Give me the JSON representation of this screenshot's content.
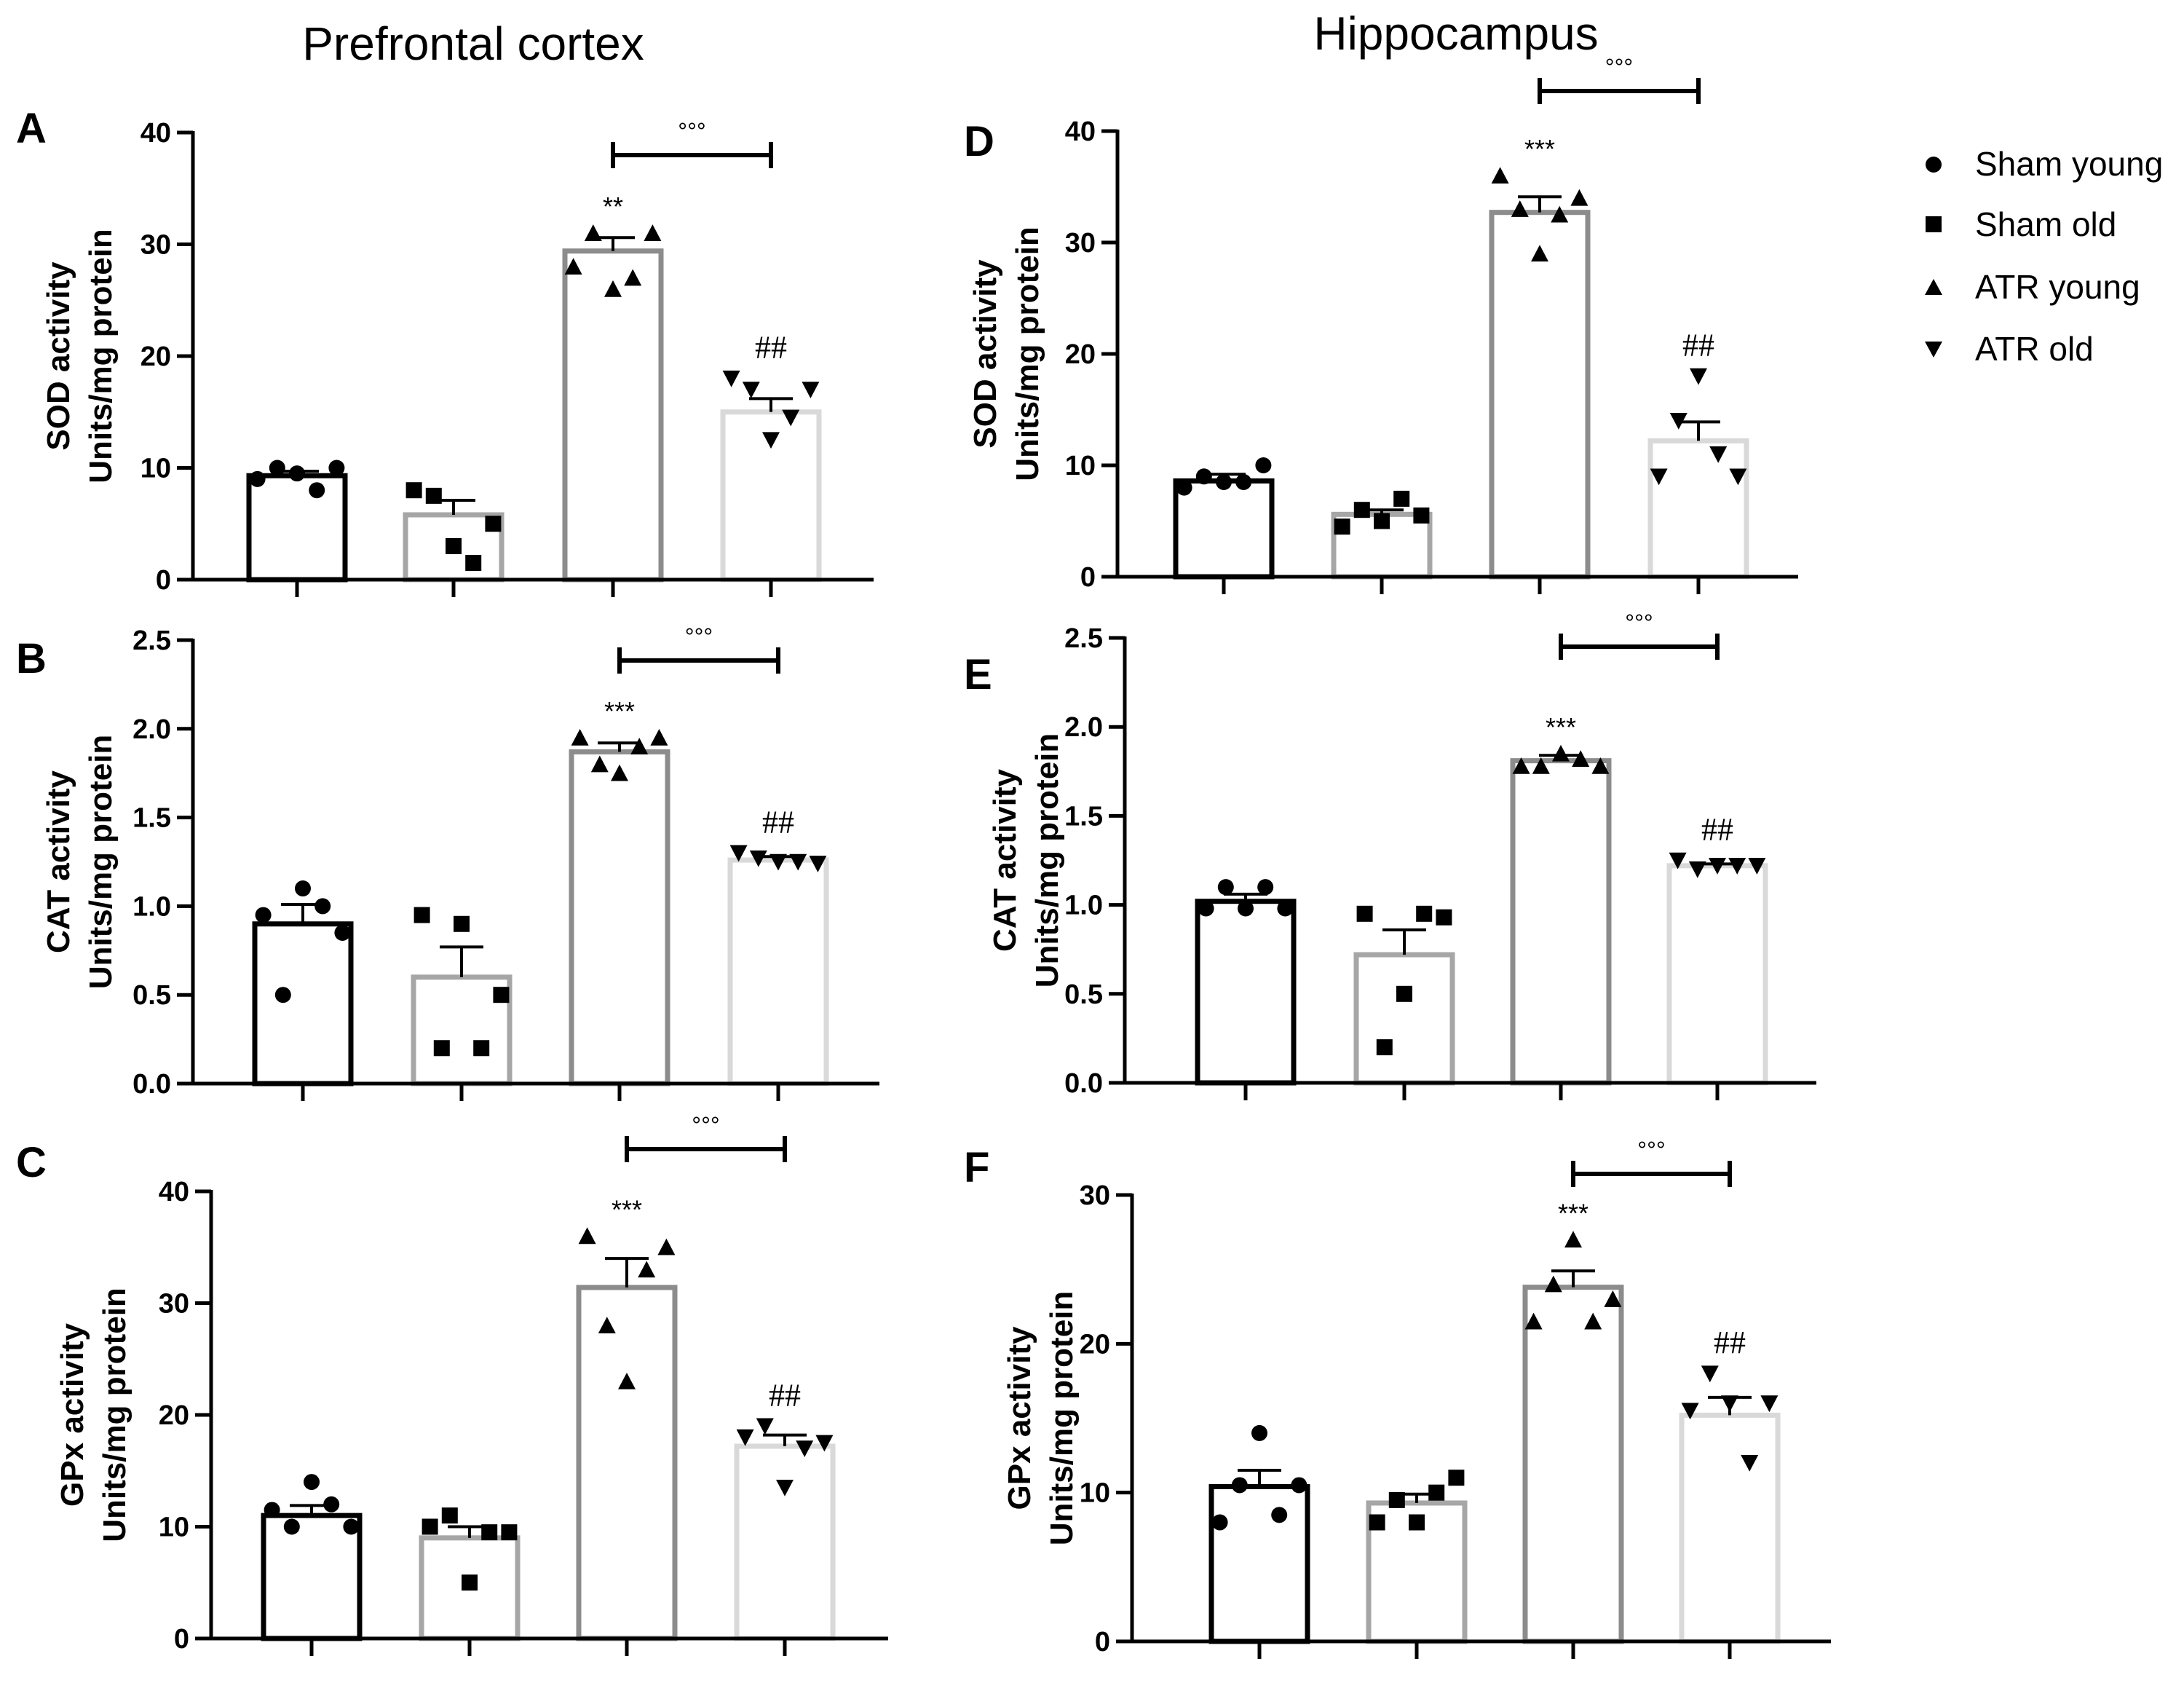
{
  "columns": {
    "left": "Prefrontal cortex",
    "right": "Hippocampus"
  },
  "legend": [
    {
      "label": "Sham young",
      "marker": "circle"
    },
    {
      "label": "Sham old",
      "marker": "square"
    },
    {
      "label": "ATR young",
      "marker": "triangle-up"
    },
    {
      "label": "ATR old",
      "marker": "triangle-down"
    }
  ],
  "colors": {
    "sham_young": "#000000",
    "sham_old": "#a6a6a6",
    "atr_young": "#8c8c8c",
    "atr_old": "#d9d9d9",
    "points": "#000000"
  },
  "chart_data": [
    {
      "id": "A",
      "type": "bar",
      "region": "Prefrontal cortex",
      "ylabel": [
        "SOD activity",
        "Units/mg protein"
      ],
      "ylim": [
        0,
        40
      ],
      "yticks": [
        "0",
        "10",
        "20",
        "30",
        "40"
      ],
      "categories": [
        "Sham young",
        "Sham old",
        "ATR young",
        "ATR old"
      ],
      "values": [
        9.3,
        5.8,
        29.4,
        15.0
      ],
      "sem": [
        0.4,
        1.3,
        1.2,
        1.2
      ],
      "points": [
        [
          9.0,
          10.0,
          9.5,
          8.0,
          10.0
        ],
        [
          8.0,
          7.5,
          3.0,
          1.5,
          5.0
        ],
        [
          28.0,
          31.0,
          26.0,
          27.0,
          31.0
        ],
        [
          18.0,
          17.0,
          12.5,
          14.5,
          17.0
        ]
      ],
      "significance": [
        "",
        "",
        "**",
        "##"
      ],
      "bracket_label": "°°°"
    },
    {
      "id": "B",
      "type": "bar",
      "region": "Prefrontal cortex",
      "ylabel": [
        "CAT activity",
        "Units/mg protein"
      ],
      "ylim": [
        0,
        2.5
      ],
      "yticks": [
        "0.0",
        "0.5",
        "1.0",
        "1.5",
        "2.0",
        "2.5"
      ],
      "categories": [
        "Sham young",
        "Sham old",
        "ATR young",
        "ATR old"
      ],
      "values": [
        0.9,
        0.6,
        1.87,
        1.26
      ],
      "sem": [
        0.11,
        0.17,
        0.05,
        0.02
      ],
      "points": [
        [
          0.95,
          0.5,
          1.1,
          1.0,
          0.85
        ],
        [
          0.95,
          0.2,
          0.9,
          0.2,
          0.5
        ],
        [
          1.95,
          1.8,
          1.75,
          1.9,
          1.95
        ],
        [
          1.3,
          1.27,
          1.25,
          1.25,
          1.24
        ]
      ],
      "significance": [
        "",
        "",
        "***",
        "##"
      ],
      "bracket_label": "°°°"
    },
    {
      "id": "C",
      "type": "bar",
      "region": "Prefrontal cortex",
      "ylabel": [
        "GPx activity",
        "Units/mg protein"
      ],
      "ylim": [
        0,
        40
      ],
      "yticks": [
        "0",
        "10",
        "20",
        "30",
        "40"
      ],
      "categories": [
        "Sham young",
        "Sham old",
        "ATR young",
        "ATR old"
      ],
      "values": [
        11.0,
        9.0,
        31.4,
        17.2
      ],
      "sem": [
        0.9,
        1.0,
        2.6,
        1.0
      ],
      "points": [
        [
          11.5,
          10.0,
          14.0,
          12.0,
          10.0
        ],
        [
          10.0,
          11.0,
          5.0,
          9.5,
          9.5
        ],
        [
          36.0,
          28.0,
          23.0,
          33.0,
          35.0
        ],
        [
          18.0,
          19.0,
          13.5,
          17.0,
          17.5
        ]
      ],
      "significance": [
        "",
        "",
        "***",
        "##"
      ],
      "bracket_label": "°°°"
    },
    {
      "id": "D",
      "type": "bar",
      "region": "Hippocampus",
      "ylabel": [
        "SOD activity",
        "Units/mg protein"
      ],
      "ylim": [
        0,
        40
      ],
      "yticks": [
        "0",
        "10",
        "20",
        "30",
        "40"
      ],
      "categories": [
        "Sham young",
        "Sham old",
        "ATR young",
        "ATR old"
      ],
      "values": [
        8.6,
        5.6,
        32.7,
        12.2
      ],
      "sem": [
        0.6,
        0.4,
        1.4,
        1.7
      ],
      "points": [
        [
          8.0,
          9.0,
          8.5,
          8.5,
          10.0
        ],
        [
          4.5,
          6.0,
          5.0,
          7.0,
          5.5
        ],
        [
          36.0,
          33.0,
          29.0,
          32.5,
          34.0
        ],
        [
          9.0,
          14.0,
          18.0,
          11.0,
          9.0
        ]
      ],
      "significance": [
        "",
        "",
        "***",
        "##"
      ],
      "bracket_label": "°°°"
    },
    {
      "id": "E",
      "type": "bar",
      "region": "Hippocampus",
      "ylabel": [
        "CAT activity",
        "Units/mg protein"
      ],
      "ylim": [
        0,
        2.5
      ],
      "yticks": [
        "0.0",
        "0.5",
        "1.0",
        "1.5",
        "2.0",
        "2.5"
      ],
      "categories": [
        "Sham young",
        "Sham old",
        "ATR young",
        "ATR old"
      ],
      "values": [
        1.02,
        0.72,
        1.81,
        1.22
      ],
      "sem": [
        0.04,
        0.14,
        0.03,
        0.01
      ],
      "points": [
        [
          0.98,
          1.1,
          0.98,
          1.1,
          0.98
        ],
        [
          0.95,
          0.2,
          0.5,
          0.95,
          0.93
        ],
        [
          1.78,
          1.78,
          1.85,
          1.82,
          1.78
        ],
        [
          1.25,
          1.2,
          1.22,
          1.22,
          1.22
        ]
      ],
      "significance": [
        "",
        "",
        "***",
        "##"
      ],
      "bracket_label": "°°°"
    },
    {
      "id": "F",
      "type": "bar",
      "region": "Hippocampus",
      "ylabel": [
        "GPx activity",
        "Units/mg protein"
      ],
      "ylim": [
        0,
        30
      ],
      "yticks": [
        "0",
        "10",
        "20",
        "30"
      ],
      "categories": [
        "Sham young",
        "Sham old",
        "ATR young",
        "ATR old"
      ],
      "values": [
        10.4,
        9.3,
        23.8,
        15.2
      ],
      "sem": [
        1.1,
        0.6,
        1.1,
        1.2
      ],
      "points": [
        [
          8.0,
          10.5,
          14.0,
          8.5,
          10.5
        ],
        [
          8.0,
          9.5,
          8.0,
          10.0,
          11.0
        ],
        [
          21.5,
          24.0,
          27.0,
          21.5,
          23.0
        ],
        [
          15.5,
          18.0,
          16.0,
          12.0,
          16.0
        ]
      ],
      "significance": [
        "",
        "",
        "***",
        "##"
      ],
      "bracket_label": "°°°"
    }
  ]
}
